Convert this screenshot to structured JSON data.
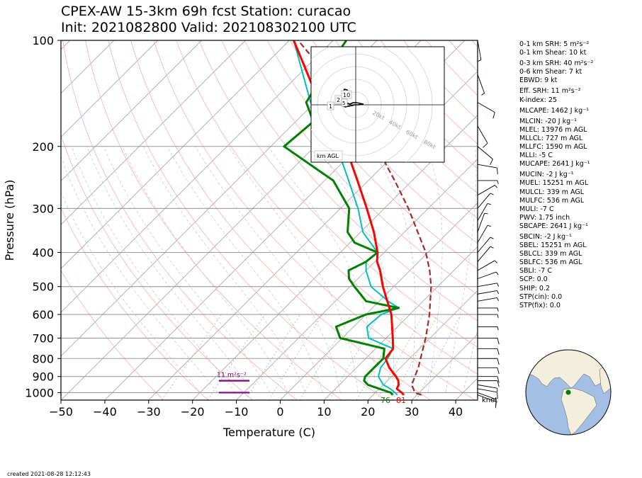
{
  "title": {
    "line1": "CPEX-AW 15-3km  69h fcst  Station: curacao",
    "line2": "Init: 2021082800  Valid: 202108302100 UTC"
  },
  "created": "created 2021-08-28 12:12:43",
  "knot_label": "knot",
  "side_params": [
    {
      "label": "0-1 km SRH: 5 m²s⁻²"
    },
    {
      "label": "0-1 km Shear: 10 kt"
    },
    {
      "gap": true
    },
    {
      "label": "0-3 km SRH: 40 m²s⁻²"
    },
    {
      "label": "0-6 km Shear: 7 kt"
    },
    {
      "label": "EBWD: 9 kt"
    },
    {
      "gap": true
    },
    {
      "label": "Eff. SRH: 11 m²s⁻²"
    },
    {
      "label": "K-index: 25"
    },
    {
      "gap": true
    },
    {
      "label": "MLCAPE: 1462 J kg⁻¹"
    },
    {
      "gap": true
    },
    {
      "label": "MLCIN: -20 J kg⁻¹"
    },
    {
      "label": "MLEL: 13976 m AGL"
    },
    {
      "label": "MLLCL: 727 m AGL"
    },
    {
      "label": "MLLFC: 1590 m AGL"
    },
    {
      "label": "MLLI: -5 C"
    },
    {
      "label": "MUCAPE: 2641 J kg⁻¹"
    },
    {
      "gap": true
    },
    {
      "label": "MUCIN: -2 J kg⁻¹"
    },
    {
      "label": "MUEL: 15251 m AGL"
    },
    {
      "label": "MULCL: 339 m AGL"
    },
    {
      "label": "MULFC: 536 m AGL"
    },
    {
      "label": "MULI: -7 C"
    },
    {
      "label": "PWV: 1.75 inch"
    },
    {
      "label": "SBCAPE: 2641 J kg⁻¹"
    },
    {
      "gap": true
    },
    {
      "label": "SBCIN: -2 J kg⁻¹"
    },
    {
      "label": "SBEL: 15251 m AGL"
    },
    {
      "label": "SBLCL: 339 m AGL"
    },
    {
      "label": "SBLFC: 536 m AGL"
    },
    {
      "label": "SBLI: -7 C"
    },
    {
      "label": "SCP: 0.0"
    },
    {
      "label": "SHIP: 0.2"
    },
    {
      "label": "STP(cin): 0.0"
    },
    {
      "label": "STP(fix): 0.0"
    }
  ],
  "colors": {
    "temperature": "#ff0000",
    "dewpoint": "#008000",
    "wetbulb": "#00bfbf",
    "parcel": "#a52a2a",
    "dry_adiabat": "#ffaaaa",
    "moist_adiabat": "#bbbbbb",
    "mixing_ratio": "#88cc88",
    "isotherm": "#aaaaaa",
    "srh_bar": "#800080",
    "map_ocean": "#a4bfe4",
    "map_land": "#f2efdc",
    "station": "#008000"
  },
  "chart_data": {
    "type": "line",
    "subtype": "skew-t log-p",
    "xlabel": "Temperature (C)",
    "ylabel": "Pressure (hPa)",
    "x_ticks": [
      -50,
      -40,
      -30,
      -20,
      -10,
      0,
      10,
      20,
      30,
      40
    ],
    "xlim": [
      -50,
      45
    ],
    "y_ticks": [
      100,
      200,
      300,
      400,
      500,
      600,
      700,
      800,
      900,
      1000
    ],
    "ylim": [
      1050,
      100
    ],
    "y_scale": "log",
    "grid": true,
    "series": [
      {
        "key": "temperature",
        "points": [
          [
            1015,
            27
          ],
          [
            1000,
            26
          ],
          [
            975,
            24
          ],
          [
            950,
            23.5
          ],
          [
            925,
            22.5
          ],
          [
            900,
            21
          ],
          [
            850,
            17.5
          ],
          [
            800,
            14.5
          ],
          [
            750,
            14
          ],
          [
            700,
            11.5
          ],
          [
            600,
            5.8
          ],
          [
            500,
            -2.5
          ],
          [
            450,
            -6.8
          ],
          [
            425,
            -9.5
          ],
          [
            400,
            -11.5
          ],
          [
            350,
            -17
          ],
          [
            300,
            -24
          ],
          [
            250,
            -32.5
          ],
          [
            200,
            -43
          ],
          [
            150,
            -59
          ],
          [
            100,
            -79
          ]
        ]
      },
      {
        "key": "dewpoint",
        "points": [
          [
            1015,
            24.5
          ],
          [
            1000,
            23.5
          ],
          [
            975,
            20
          ],
          [
            950,
            16.5
          ],
          [
            925,
            14.7
          ],
          [
            900,
            14
          ],
          [
            850,
            14
          ],
          [
            800,
            14
          ],
          [
            750,
            12
          ],
          [
            700,
            -0.5
          ],
          [
            650,
            -4
          ],
          [
            600,
            0
          ],
          [
            575,
            6
          ],
          [
            550,
            -3
          ],
          [
            500,
            -9
          ],
          [
            475,
            -12
          ],
          [
            450,
            -14
          ],
          [
            425,
            -12
          ],
          [
            400,
            -11.5
          ],
          [
            375,
            -19
          ],
          [
            350,
            -23
          ],
          [
            300,
            -28
          ],
          [
            250,
            -38
          ],
          [
            200,
            -57
          ],
          [
            170,
            -56
          ],
          [
            150,
            -62
          ],
          [
            120,
            -65
          ],
          [
            100,
            -67
          ]
        ]
      },
      {
        "key": "wetbulb",
        "points": [
          [
            1015,
            25.5
          ],
          [
            1000,
            24.5
          ],
          [
            975,
            22.5
          ],
          [
            950,
            20
          ],
          [
            925,
            18.5
          ],
          [
            900,
            17
          ],
          [
            850,
            15.5
          ],
          [
            800,
            15
          ],
          [
            750,
            14
          ],
          [
            700,
            6
          ],
          [
            650,
            3
          ],
          [
            600,
            3.5
          ],
          [
            575,
            6
          ],
          [
            550,
            2
          ],
          [
            500,
            -5.2
          ],
          [
            450,
            -10
          ],
          [
            425,
            -12
          ],
          [
            400,
            -11.5
          ],
          [
            350,
            -19.5
          ],
          [
            300,
            -26
          ],
          [
            250,
            -34.5
          ],
          [
            200,
            -45
          ],
          [
            150,
            -61
          ],
          [
            100,
            -79
          ]
        ]
      },
      {
        "key": "parcel",
        "points": [
          [
            1015,
            31
          ],
          [
            1000,
            29
          ],
          [
            950,
            26.5
          ],
          [
            900,
            25.3
          ],
          [
            850,
            24.1
          ],
          [
            800,
            22.5
          ],
          [
            700,
            19
          ],
          [
            600,
            14.5
          ],
          [
            500,
            8.5
          ],
          [
            450,
            4.5
          ],
          [
            400,
            -0.5
          ],
          [
            350,
            -7
          ],
          [
            300,
            -14.5
          ],
          [
            250,
            -24
          ],
          [
            200,
            -36
          ],
          [
            150,
            -52
          ],
          [
            100,
            -78
          ]
        ]
      }
    ],
    "surface_labels": {
      "dewpoint": "76",
      "temperature": "81"
    },
    "srh_bars": [
      {
        "pressure": 1000,
        "temp_start": -14,
        "temp_end": -7,
        "label": ""
      },
      {
        "pressure": 925,
        "temp_start": -14,
        "temp_end": -7,
        "label": "11 m²s⁻²"
      }
    ],
    "wind_barbs_kt": [
      {
        "p": 1015,
        "speed": 10,
        "dir": 110
      },
      {
        "p": 1000,
        "speed": 10,
        "dir": 110
      },
      {
        "p": 975,
        "speed": 10,
        "dir": 100
      },
      {
        "p": 950,
        "speed": 5,
        "dir": 100
      },
      {
        "p": 925,
        "speed": 10,
        "dir": 90
      },
      {
        "p": 900,
        "speed": 10,
        "dir": 90
      },
      {
        "p": 850,
        "speed": 10,
        "dir": 90
      },
      {
        "p": 800,
        "speed": 10,
        "dir": 90
      },
      {
        "p": 750,
        "speed": 10,
        "dir": 90
      },
      {
        "p": 700,
        "speed": 10,
        "dir": 90
      },
      {
        "p": 650,
        "speed": 5,
        "dir": 90
      },
      {
        "p": 600,
        "speed": 5,
        "dir": 90
      },
      {
        "p": 575,
        "speed": 5,
        "dir": 90
      },
      {
        "p": 550,
        "speed": 5,
        "dir": 80
      },
      {
        "p": 525,
        "speed": 5,
        "dir": 80
      },
      {
        "p": 500,
        "speed": 5,
        "dir": 80
      },
      {
        "p": 475,
        "speed": 5,
        "dir": 70
      },
      {
        "p": 450,
        "speed": 5,
        "dir": 60
      },
      {
        "p": 425,
        "speed": 5,
        "dir": 40
      },
      {
        "p": 400,
        "speed": 5,
        "dir": 40
      },
      {
        "p": 375,
        "speed": 5,
        "dir": 30
      },
      {
        "p": 350,
        "speed": 5,
        "dir": 20
      },
      {
        "p": 325,
        "speed": 5,
        "dir": 30
      },
      {
        "p": 300,
        "speed": 5,
        "dir": 40
      },
      {
        "p": 275,
        "speed": 5,
        "dir": 60
      },
      {
        "p": 250,
        "speed": 5,
        "dir": 90
      },
      {
        "p": 225,
        "speed": 10,
        "dir": 100
      },
      {
        "p": 200,
        "speed": 10,
        "dir": 130
      },
      {
        "p": 175,
        "speed": 10,
        "dir": 150
      },
      {
        "p": 150,
        "speed": 10,
        "dir": 120
      },
      {
        "p": 125,
        "speed": 5,
        "dir": 160
      },
      {
        "p": 100,
        "speed": 5,
        "dir": 170
      }
    ],
    "hodograph": {
      "ring_labels": [
        "20kt",
        "40kt",
        "60kt",
        "80kt"
      ],
      "height_labels": [
        "1",
        "2",
        "5",
        "10"
      ],
      "box_label": "km AGL"
    },
    "station_marker": {
      "lat": 12.2,
      "lon": -69.0
    }
  }
}
